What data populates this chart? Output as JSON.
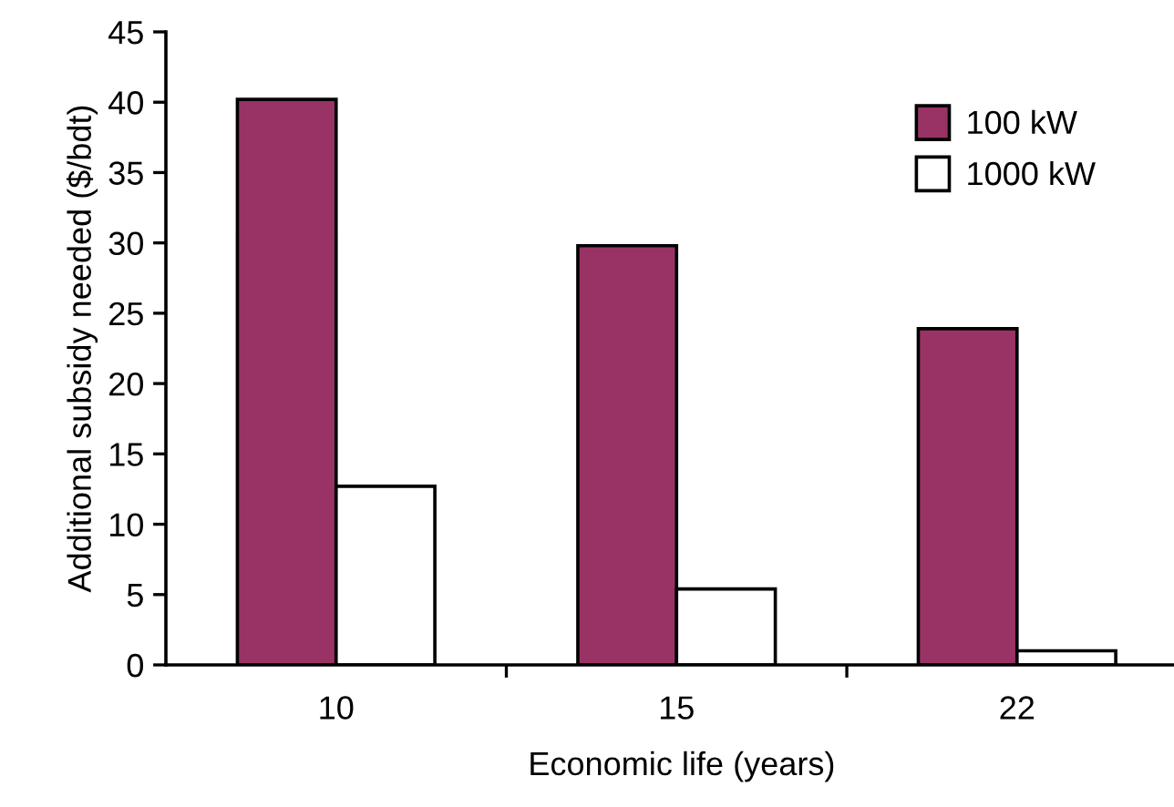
{
  "chart_data": {
    "type": "bar",
    "xlabel": "Economic life (years)",
    "ylabel": "Additional subsidy needed ($/bdt)",
    "categories": [
      "10",
      "15",
      "22"
    ],
    "series": [
      {
        "name": "100 kW",
        "color": "#993366",
        "values": [
          40.2,
          29.8,
          23.9
        ]
      },
      {
        "name": "1000 kW",
        "color": "#ffffff",
        "values": [
          12.7,
          5.4,
          1.0
        ]
      }
    ],
    "ylim": [
      0,
      45
    ],
    "yticks": [
      0,
      5,
      10,
      15,
      20,
      25,
      30,
      35,
      40,
      45
    ],
    "grid": false,
    "legend": "top right"
  }
}
